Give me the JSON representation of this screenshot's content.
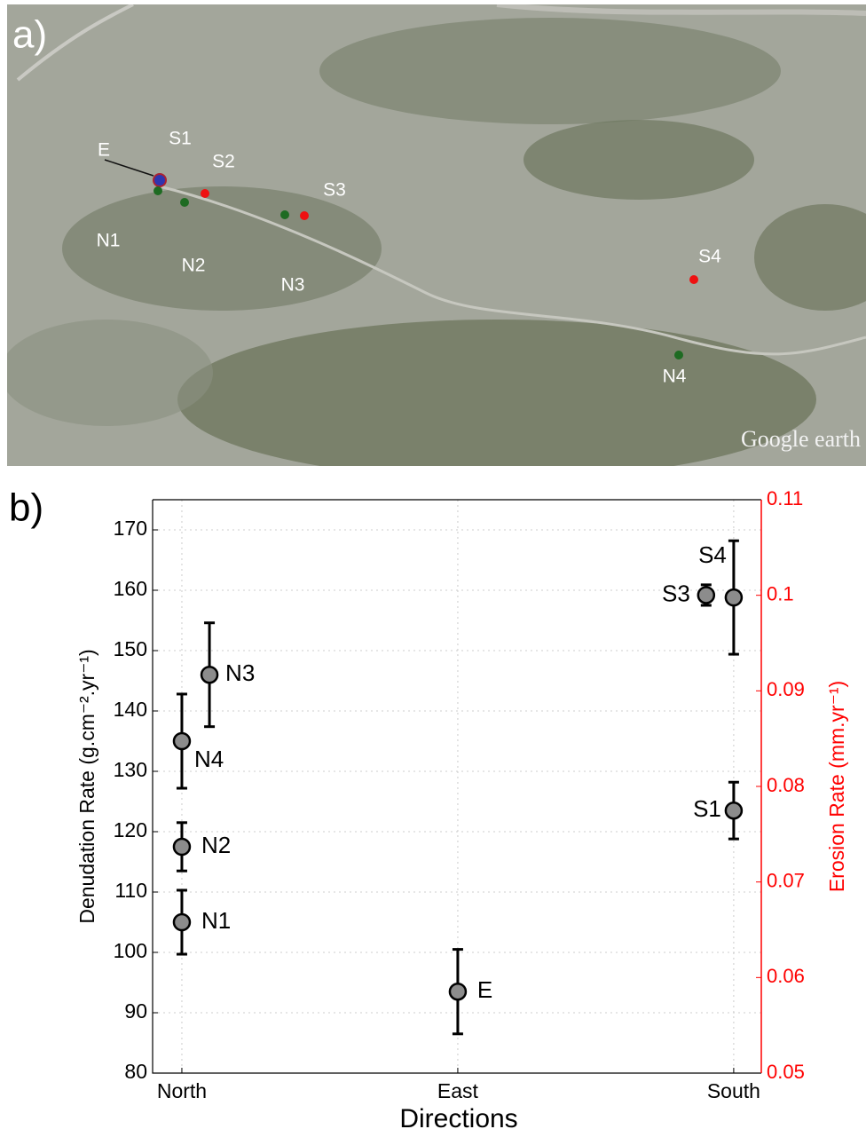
{
  "map": {
    "panel_label": "a)",
    "labels": [
      "E",
      "S1",
      "S2",
      "S3",
      "N1",
      "N2",
      "N3",
      "S4",
      "N4"
    ],
    "watermark": "Google earth"
  },
  "chart_data": {
    "type": "scatter",
    "panel_label": "b)",
    "x_label": "Directions",
    "y_label": "Denudation Rate  (g.cm⁻².yr⁻¹)",
    "y2_label": "Erosion Rate  (mm.yr⁻¹)",
    "labels": [
      "N1",
      "N2",
      "N4",
      "N3",
      "E",
      "S1",
      "S3",
      "S4"
    ],
    "x": [
      1,
      1,
      1,
      1.1,
      2,
      3,
      2.9,
      3
    ],
    "values": [
      105,
      117.5,
      135,
      146,
      93.5,
      123.5,
      159.2,
      158.8
    ],
    "errors": [
      5.3,
      4,
      7.8,
      8.6,
      7,
      4.7,
      1.7,
      9.4
    ],
    "color": "#8c8c8c",
    "xlim": [
      0.894,
      3.1
    ],
    "xticks": [
      {
        "value": 1,
        "label": "North"
      },
      {
        "value": 2,
        "label": "East"
      },
      {
        "value": 3,
        "label": "South"
      }
    ],
    "ylim": [
      80,
      175
    ],
    "yticks": [
      80,
      90,
      100,
      110,
      120,
      130,
      140,
      150,
      160,
      170
    ],
    "y2lim": [
      0.05,
      0.11
    ],
    "y2ticks": [
      0.05,
      0.06,
      0.07,
      0.08,
      0.09,
      0.1,
      0.11
    ],
    "y2_color": "#ff0000",
    "grid": true
  }
}
